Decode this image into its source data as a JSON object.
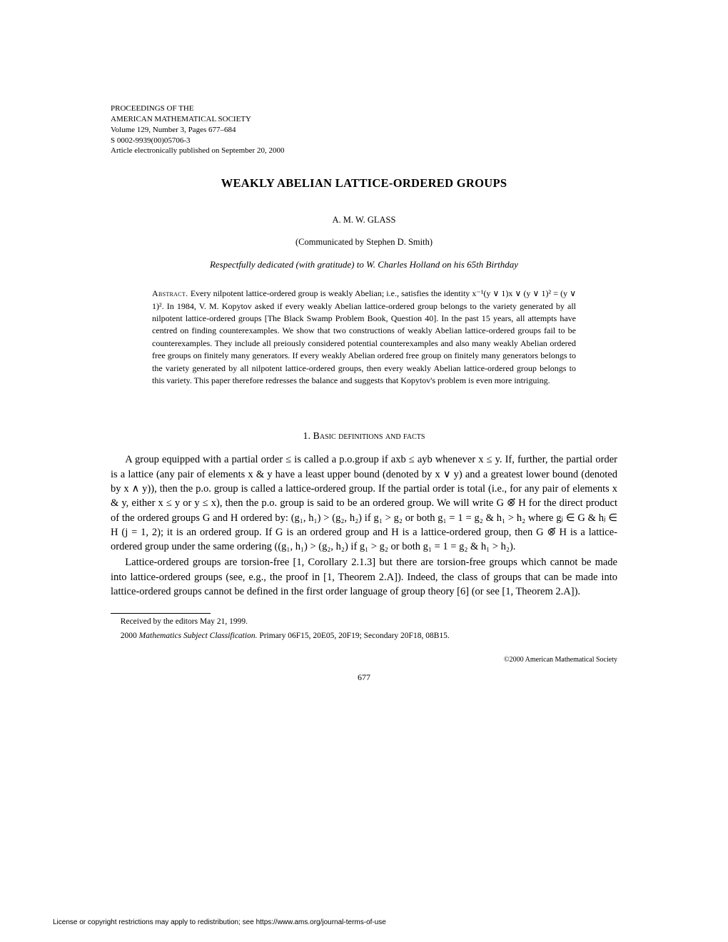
{
  "header": {
    "line1": "PROCEEDINGS OF THE",
    "line2": "AMERICAN MATHEMATICAL SOCIETY",
    "line3": "Volume 129, Number 3, Pages 677–684",
    "line4": "S 0002-9939(00)05706-3",
    "line5": "Article electronically published on September 20, 2000"
  },
  "title": "WEAKLY ABELIAN LATTICE-ORDERED GROUPS",
  "author": "A. M. W. GLASS",
  "communicated": "(Communicated by Stephen D. Smith)",
  "dedication": "Respectfully dedicated (with gratitude) to W. Charles Holland on his 65th Birthday",
  "abstract_label": "Abstract. ",
  "abstract_body": "Every nilpotent lattice-ordered group is weakly Abelian; i.e., satisfies the identity x⁻¹(y ∨ 1)x ∨ (y ∨ 1)² = (y ∨ 1)². In 1984, V. M. Kopytov asked if every weakly Abelian lattice-ordered group belongs to the variety generated by all nilpotent lattice-ordered groups [The Black Swamp Problem Book, Question 40]. In the past 15 years, all attempts have centred on finding counterexamples. We show that two constructions of weakly Abelian lattice-ordered groups fail to be counterexamples. They include all preiously considered potential counterexamples and also many weakly Abelian ordered free groups on finitely many generators. If every weakly Abelian ordered free group on finitely many generators belongs to the variety generated by all nilpotent lattice-ordered groups, then every weakly Abelian lattice-ordered group belongs to this variety. This paper therefore redresses the balance and suggests that Kopytov's problem is even more intriguing.",
  "section1_heading": "1. Basic definitions and facts",
  "para1": "A group equipped with a partial order ≤ is called a p.o.group if axb ≤ ayb whenever x ≤ y. If, further, the partial order is a lattice (any pair of elements x & y have a least upper bound (denoted by x ∨ y) and a greatest lower bound (denoted by x ∧ y)), then the p.o. group is called a lattice-ordered group. If the partial order is total (i.e., for any pair of elements x & y, either x ≤ y or y ≤ x), then the p.o. group is said to be an ordered group. We will write G ⊗⃗ H for the direct product of the ordered groups G and H ordered by: (g₁, h₁) > (g₂, h₂) if g₁ > g₂ or both g₁ = 1 = g₂ & h₁ > h₂ where gⱼ ∈ G & hⱼ ∈ H (j = 1, 2); it is an ordered group. If G is an ordered group and H is a lattice-ordered group, then G ⊗⃗ H is a lattice-ordered group under the same ordering ((g₁, h₁) > (g₂, h₂) if g₁ > g₂ or both g₁ = 1 = g₂ & h₁ > h₂).",
  "para2": "Lattice-ordered groups are torsion-free [1, Corollary 2.1.3] but there are torsion-free groups which cannot be made into lattice-ordered groups (see, e.g., the proof in [1, Theorem 2.A]). Indeed, the class of groups that can be made into lattice-ordered groups cannot be defined in the first order language of group theory [6] (or see [1, Theorem 2.A]).",
  "footnote1": "Received by the editors May 21, 1999.",
  "footnote2_a": "2000 ",
  "footnote2_b": "Mathematics Subject Classification.",
  "footnote2_c": " Primary 06F15, 20E05, 20F19; Secondary 20F18, 08B15.",
  "copyright": "©2000 American Mathematical Society",
  "page_number": "677",
  "license_line": "License or copyright restrictions may apply to redistribution; see https://www.ams.org/journal-terms-of-use"
}
